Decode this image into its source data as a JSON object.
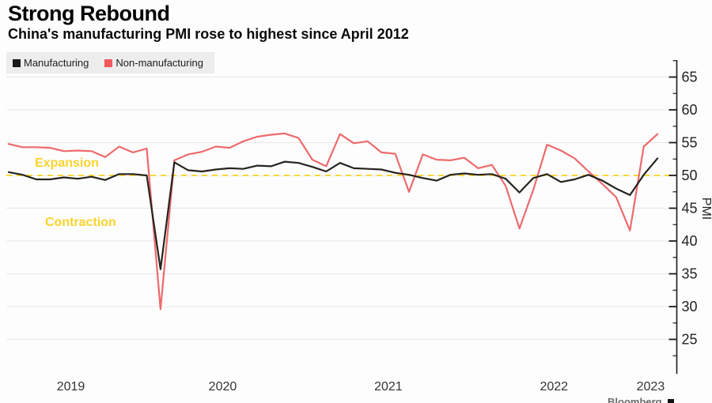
{
  "header": {
    "title": "Strong Rebound",
    "subtitle": "China's manufacturing PMI rose to highest since April 2012"
  },
  "legend": {
    "items": [
      {
        "label": "Manufacturing",
        "color": "#1a1a1a"
      },
      {
        "label": "Non-manufacturing",
        "color": "#f4585c"
      }
    ]
  },
  "annotations": {
    "expansion": "Expansion",
    "contraction": "Contraction",
    "threshold_value": 50
  },
  "axis": {
    "y_label": "PMI",
    "y_ticks": [
      25,
      30,
      35,
      40,
      45,
      50,
      55,
      60,
      65
    ],
    "x_ticks": [
      "2019",
      "2020",
      "2021",
      "2022",
      "2023"
    ]
  },
  "attribution": {
    "text": "Bloomberg"
  },
  "colors": {
    "manufacturing": "#26241f",
    "non_manufacturing": "#ed6a6c",
    "threshold_yellow": "#f8d837",
    "annotation_yellow": "#fbd32c",
    "grid": "#eae7e6",
    "axis": "#1a1a1a"
  },
  "chart_data": {
    "type": "line",
    "title": "Strong Rebound",
    "xlabel": "",
    "ylabel": "PMI",
    "ylim": [
      22.5,
      67.5
    ],
    "grid": "horizontal",
    "legend_position": "top-left",
    "reference_line": {
      "value": 50,
      "style": "dashed",
      "color": "#f8d837"
    },
    "x": [
      "2019-03",
      "2019-04",
      "2019-05",
      "2019-06",
      "2019-07",
      "2019-08",
      "2019-09",
      "2019-10",
      "2019-11",
      "2019-12",
      "2020-01",
      "2020-02",
      "2020-03",
      "2020-04",
      "2020-05",
      "2020-06",
      "2020-07",
      "2020-08",
      "2020-09",
      "2020-10",
      "2020-11",
      "2020-12",
      "2021-01",
      "2021-02",
      "2021-03",
      "2021-04",
      "2021-05",
      "2021-06",
      "2021-07",
      "2021-08",
      "2021-09",
      "2021-10",
      "2021-11",
      "2021-12",
      "2022-01",
      "2022-02",
      "2022-03",
      "2022-04",
      "2022-05",
      "2022-06",
      "2022-07",
      "2022-08",
      "2022-09",
      "2022-10",
      "2022-11",
      "2022-12",
      "2023-01",
      "2023-02"
    ],
    "series": [
      {
        "name": "Manufacturing",
        "color": "#26241f",
        "values": [
          50.5,
          50.1,
          49.4,
          49.4,
          49.7,
          49.5,
          49.8,
          49.3,
          50.2,
          50.2,
          50.0,
          35.7,
          52.0,
          50.8,
          50.6,
          50.9,
          51.1,
          51.0,
          51.5,
          51.4,
          52.1,
          51.9,
          51.3,
          50.6,
          51.9,
          51.1,
          51.0,
          50.9,
          50.4,
          50.1,
          49.6,
          49.2,
          50.1,
          50.3,
          50.1,
          50.2,
          49.5,
          47.4,
          49.6,
          50.2,
          49.0,
          49.4,
          50.1,
          49.2,
          48.0,
          47.0,
          50.1,
          52.6
        ]
      },
      {
        "name": "Non-manufacturing",
        "color": "#ed6a6c",
        "values": [
          54.8,
          54.3,
          54.3,
          54.2,
          53.7,
          53.8,
          53.7,
          52.8,
          54.4,
          53.5,
          54.1,
          29.6,
          52.3,
          53.2,
          53.6,
          54.4,
          54.2,
          55.2,
          55.9,
          56.2,
          56.4,
          55.7,
          52.4,
          51.4,
          56.3,
          54.9,
          55.2,
          53.5,
          53.3,
          47.5,
          53.2,
          52.4,
          52.3,
          52.7,
          51.1,
          51.6,
          48.4,
          41.9,
          47.8,
          54.7,
          53.8,
          52.6,
          50.6,
          48.7,
          46.7,
          41.6,
          54.4,
          56.3
        ]
      }
    ]
  }
}
